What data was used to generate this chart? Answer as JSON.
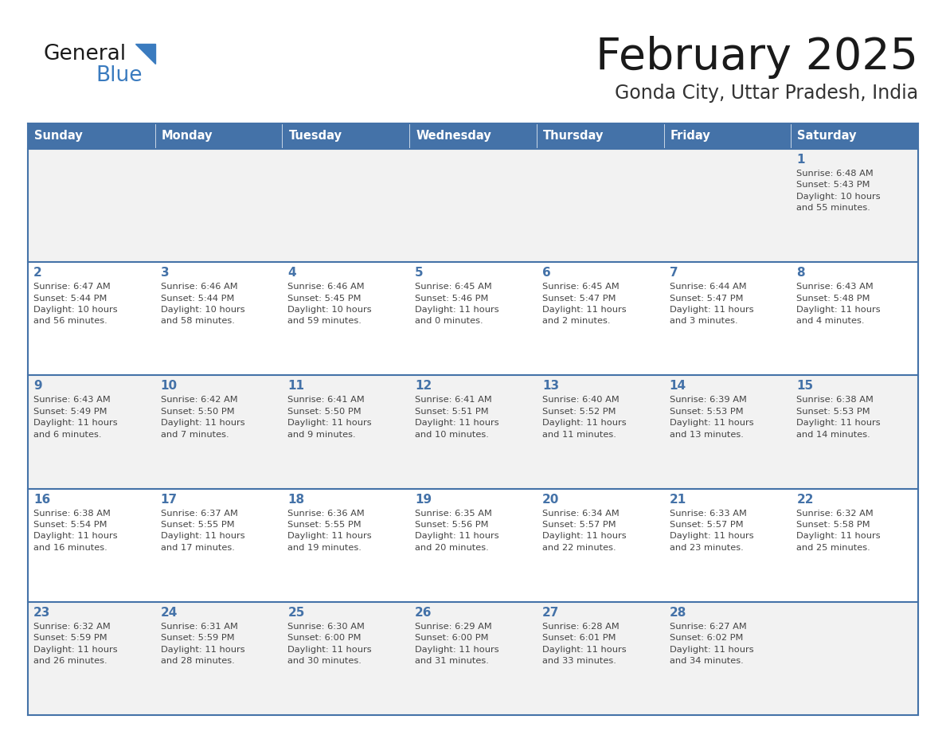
{
  "title": "February 2025",
  "subtitle": "Gonda City, Uttar Pradesh, India",
  "header_bg_color": "#4472a8",
  "header_text_color": "#ffffff",
  "row_bg_1": "#f2f2f2",
  "row_bg_2": "#ffffff",
  "border_color": "#4472a8",
  "day_text_color": "#4472a8",
  "info_text_color": "#444444",
  "title_color": "#1a1a1a",
  "subtitle_color": "#333333",
  "days_of_week": [
    "Sunday",
    "Monday",
    "Tuesday",
    "Wednesday",
    "Thursday",
    "Friday",
    "Saturday"
  ],
  "calendar": [
    [
      {
        "day": "",
        "info": ""
      },
      {
        "day": "",
        "info": ""
      },
      {
        "day": "",
        "info": ""
      },
      {
        "day": "",
        "info": ""
      },
      {
        "day": "",
        "info": ""
      },
      {
        "day": "",
        "info": ""
      },
      {
        "day": "1",
        "info": "Sunrise: 6:48 AM\nSunset: 5:43 PM\nDaylight: 10 hours\nand 55 minutes."
      }
    ],
    [
      {
        "day": "2",
        "info": "Sunrise: 6:47 AM\nSunset: 5:44 PM\nDaylight: 10 hours\nand 56 minutes."
      },
      {
        "day": "3",
        "info": "Sunrise: 6:46 AM\nSunset: 5:44 PM\nDaylight: 10 hours\nand 58 minutes."
      },
      {
        "day": "4",
        "info": "Sunrise: 6:46 AM\nSunset: 5:45 PM\nDaylight: 10 hours\nand 59 minutes."
      },
      {
        "day": "5",
        "info": "Sunrise: 6:45 AM\nSunset: 5:46 PM\nDaylight: 11 hours\nand 0 minutes."
      },
      {
        "day": "6",
        "info": "Sunrise: 6:45 AM\nSunset: 5:47 PM\nDaylight: 11 hours\nand 2 minutes."
      },
      {
        "day": "7",
        "info": "Sunrise: 6:44 AM\nSunset: 5:47 PM\nDaylight: 11 hours\nand 3 minutes."
      },
      {
        "day": "8",
        "info": "Sunrise: 6:43 AM\nSunset: 5:48 PM\nDaylight: 11 hours\nand 4 minutes."
      }
    ],
    [
      {
        "day": "9",
        "info": "Sunrise: 6:43 AM\nSunset: 5:49 PM\nDaylight: 11 hours\nand 6 minutes."
      },
      {
        "day": "10",
        "info": "Sunrise: 6:42 AM\nSunset: 5:50 PM\nDaylight: 11 hours\nand 7 minutes."
      },
      {
        "day": "11",
        "info": "Sunrise: 6:41 AM\nSunset: 5:50 PM\nDaylight: 11 hours\nand 9 minutes."
      },
      {
        "day": "12",
        "info": "Sunrise: 6:41 AM\nSunset: 5:51 PM\nDaylight: 11 hours\nand 10 minutes."
      },
      {
        "day": "13",
        "info": "Sunrise: 6:40 AM\nSunset: 5:52 PM\nDaylight: 11 hours\nand 11 minutes."
      },
      {
        "day": "14",
        "info": "Sunrise: 6:39 AM\nSunset: 5:53 PM\nDaylight: 11 hours\nand 13 minutes."
      },
      {
        "day": "15",
        "info": "Sunrise: 6:38 AM\nSunset: 5:53 PM\nDaylight: 11 hours\nand 14 minutes."
      }
    ],
    [
      {
        "day": "16",
        "info": "Sunrise: 6:38 AM\nSunset: 5:54 PM\nDaylight: 11 hours\nand 16 minutes."
      },
      {
        "day": "17",
        "info": "Sunrise: 6:37 AM\nSunset: 5:55 PM\nDaylight: 11 hours\nand 17 minutes."
      },
      {
        "day": "18",
        "info": "Sunrise: 6:36 AM\nSunset: 5:55 PM\nDaylight: 11 hours\nand 19 minutes."
      },
      {
        "day": "19",
        "info": "Sunrise: 6:35 AM\nSunset: 5:56 PM\nDaylight: 11 hours\nand 20 minutes."
      },
      {
        "day": "20",
        "info": "Sunrise: 6:34 AM\nSunset: 5:57 PM\nDaylight: 11 hours\nand 22 minutes."
      },
      {
        "day": "21",
        "info": "Sunrise: 6:33 AM\nSunset: 5:57 PM\nDaylight: 11 hours\nand 23 minutes."
      },
      {
        "day": "22",
        "info": "Sunrise: 6:32 AM\nSunset: 5:58 PM\nDaylight: 11 hours\nand 25 minutes."
      }
    ],
    [
      {
        "day": "23",
        "info": "Sunrise: 6:32 AM\nSunset: 5:59 PM\nDaylight: 11 hours\nand 26 minutes."
      },
      {
        "day": "24",
        "info": "Sunrise: 6:31 AM\nSunset: 5:59 PM\nDaylight: 11 hours\nand 28 minutes."
      },
      {
        "day": "25",
        "info": "Sunrise: 6:30 AM\nSunset: 6:00 PM\nDaylight: 11 hours\nand 30 minutes."
      },
      {
        "day": "26",
        "info": "Sunrise: 6:29 AM\nSunset: 6:00 PM\nDaylight: 11 hours\nand 31 minutes."
      },
      {
        "day": "27",
        "info": "Sunrise: 6:28 AM\nSunset: 6:01 PM\nDaylight: 11 hours\nand 33 minutes."
      },
      {
        "day": "28",
        "info": "Sunrise: 6:27 AM\nSunset: 6:02 PM\nDaylight: 11 hours\nand 34 minutes."
      },
      {
        "day": "",
        "info": ""
      }
    ]
  ],
  "logo_general_color": "#1a1a1a",
  "logo_blue_color": "#3a7bbf",
  "fig_width": 11.88,
  "fig_height": 9.18,
  "dpi": 100
}
